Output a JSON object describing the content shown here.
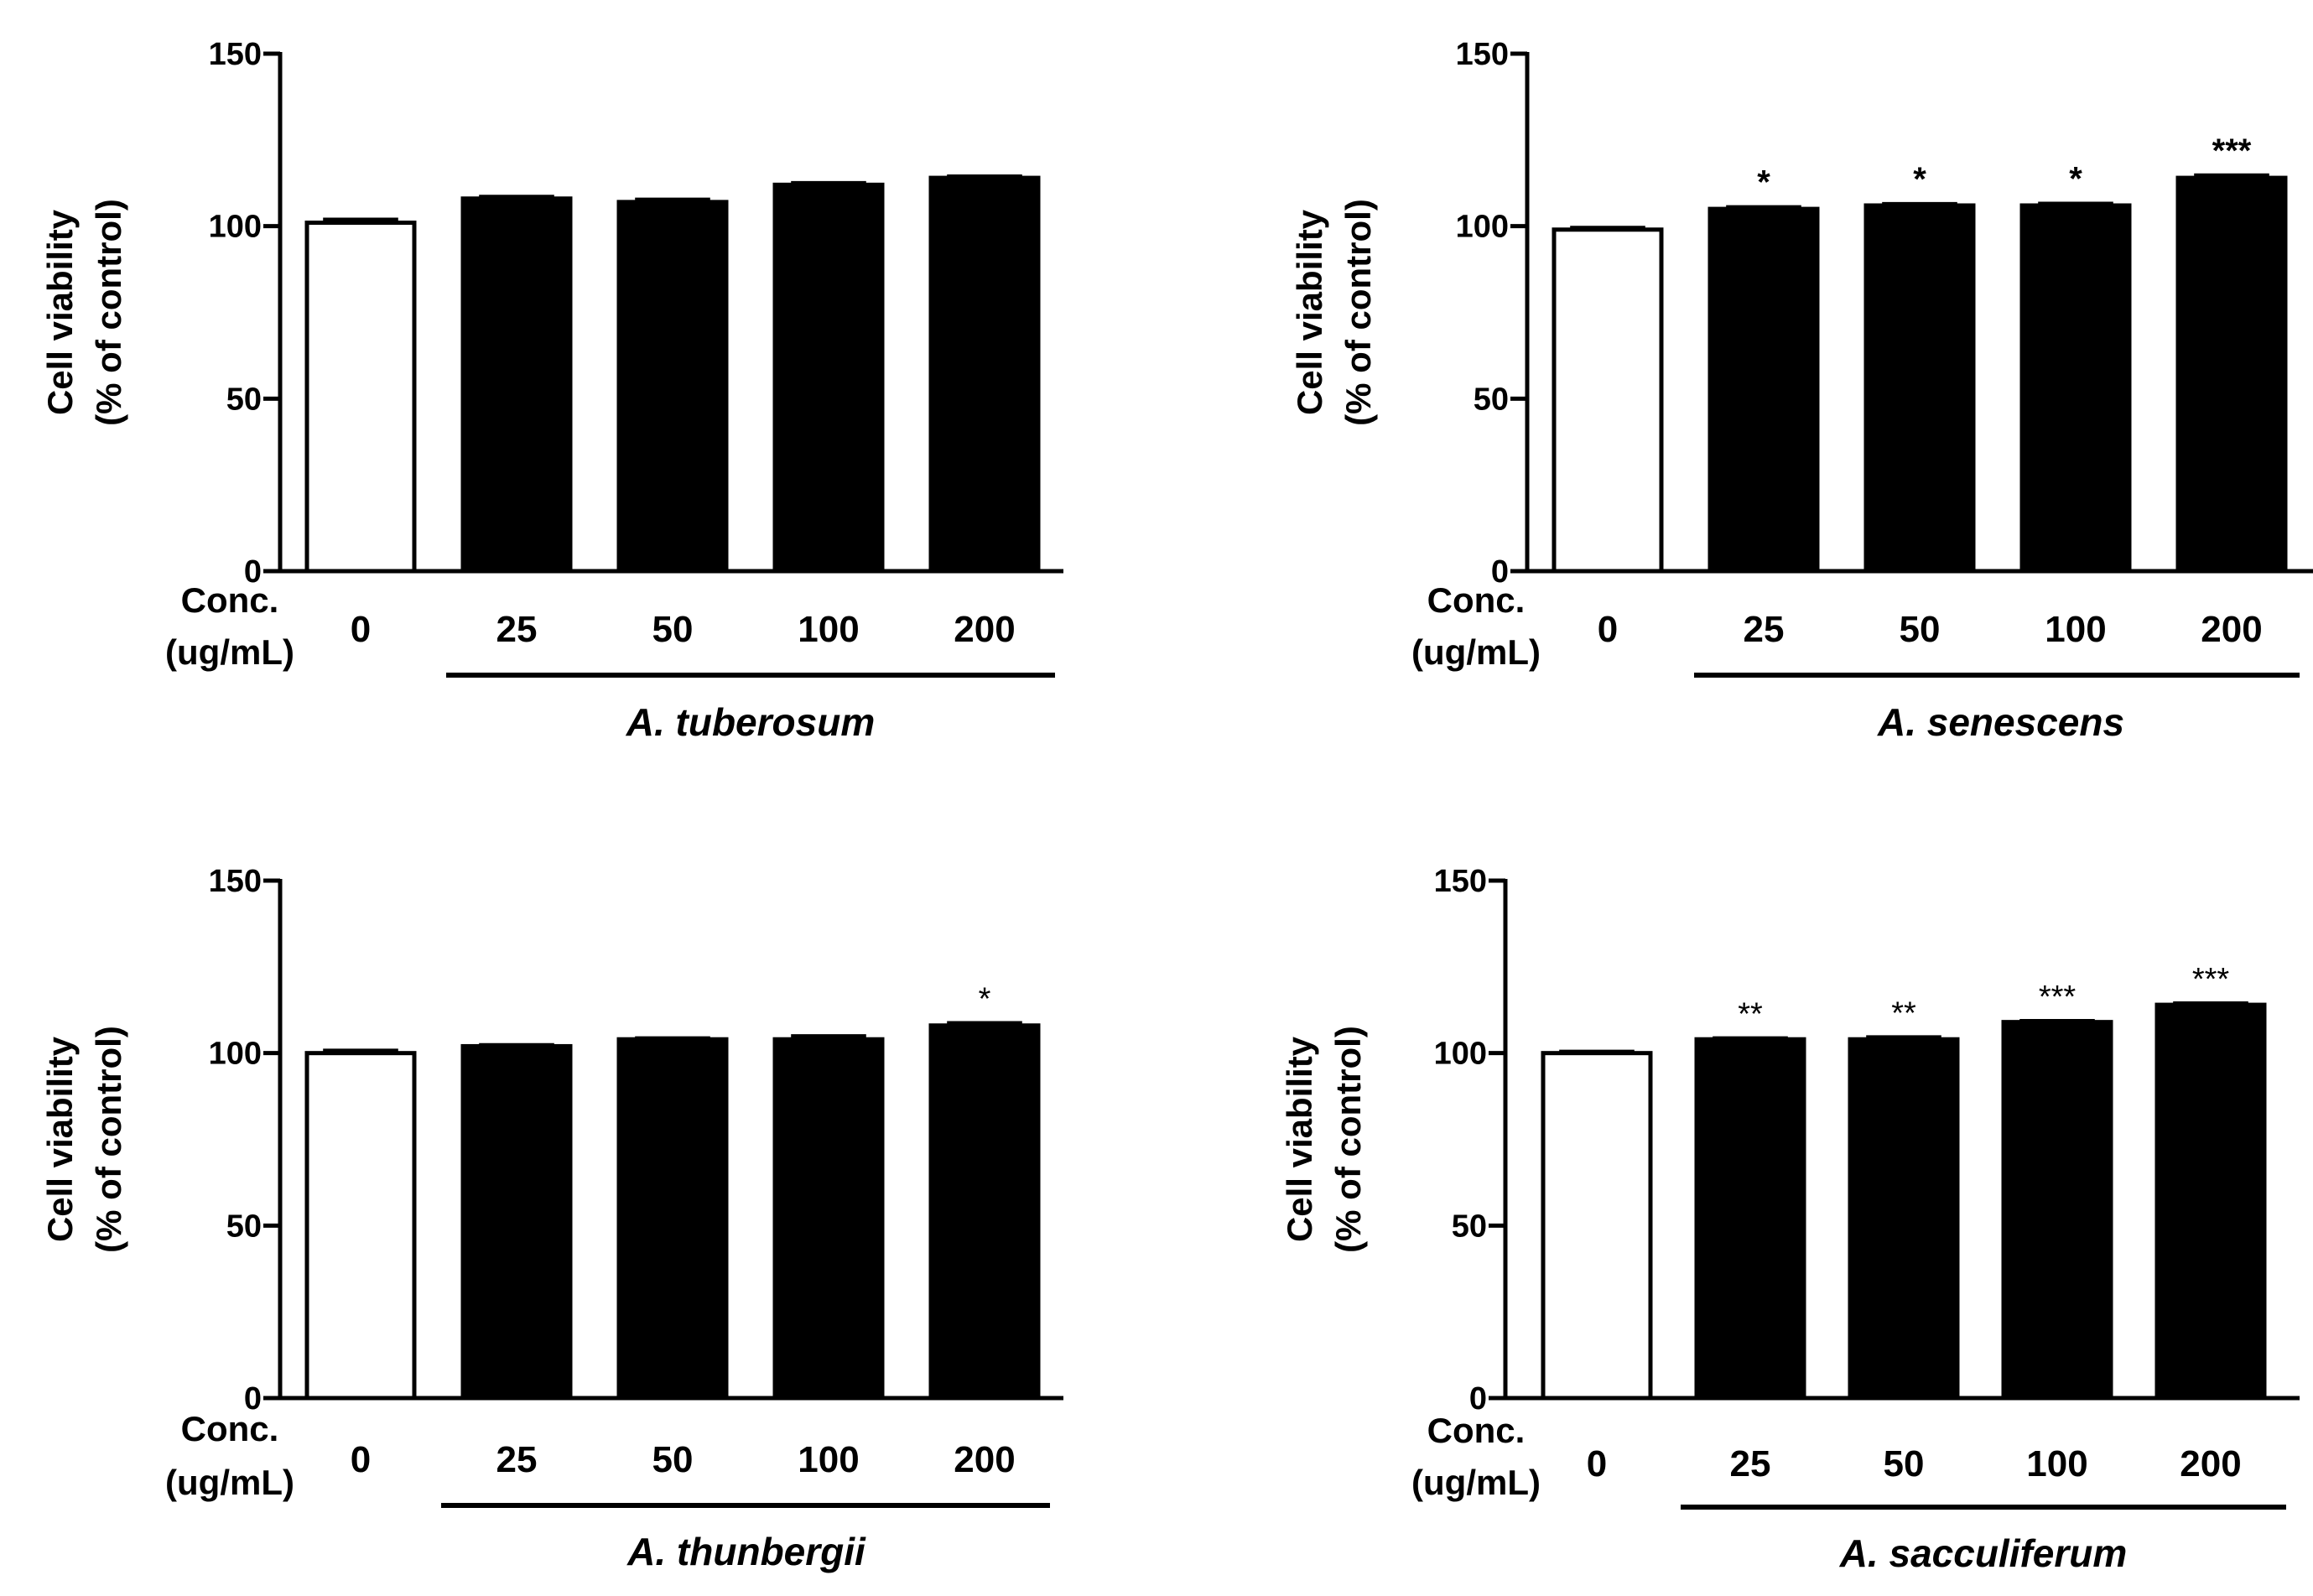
{
  "chart_data": [
    {
      "type": "bar",
      "title": "A. tuberosum",
      "ylabel": [
        "Cell viability",
        "(% of control)"
      ],
      "xlabel": [
        "Conc.",
        "(ug/mL)"
      ],
      "categories": [
        "0",
        "25",
        "50",
        "100",
        "200"
      ],
      "values": [
        101,
        108,
        107,
        112,
        114
      ],
      "errors": [
        1,
        0.6,
        0.8,
        0.6,
        0.5
      ],
      "fill": [
        "white",
        "black",
        "black",
        "black",
        "black"
      ],
      "significance": [
        "",
        "",
        "",
        "",
        ""
      ],
      "ylim": [
        0,
        150
      ],
      "yticks": [
        "0",
        "50",
        "100",
        "150"
      ],
      "group_label": "A. tuberosum"
    },
    {
      "type": "bar",
      "title": "A. senescens",
      "ylabel": [
        "Cell viability",
        "(% of control)"
      ],
      "xlabel": [
        "Conc.",
        "(ug/mL)"
      ],
      "categories": [
        "0",
        "25",
        "50",
        "100",
        "200"
      ],
      "values": [
        99,
        105,
        106,
        106,
        114
      ],
      "errors": [
        0.6,
        0.6,
        0.5,
        0.6,
        0.8
      ],
      "fill": [
        "white",
        "black",
        "black",
        "black",
        "black"
      ],
      "significance": [
        "",
        "*",
        "*",
        "*",
        "***"
      ],
      "ylim": [
        0,
        150
      ],
      "yticks": [
        "0",
        "50",
        "100",
        "150"
      ],
      "group_label": "A. senescens"
    },
    {
      "type": "bar",
      "title": "A. thunbergii",
      "ylabel": [
        "Cell viability",
        "(% of control)"
      ],
      "xlabel": [
        "Conc.",
        "(ug/mL)"
      ],
      "categories": [
        "0",
        "25",
        "50",
        "100",
        "200"
      ],
      "values": [
        100,
        102,
        104,
        104,
        108
      ],
      "errors": [
        0.8,
        0.4,
        0.4,
        1,
        0.8
      ],
      "fill": [
        "white",
        "black",
        "black",
        "black",
        "black"
      ],
      "significance": [
        "",
        "",
        "",
        "",
        "*"
      ],
      "ylim": [
        0,
        150
      ],
      "yticks": [
        "0",
        "50",
        "100",
        "150"
      ],
      "group_label": "A. thunbergii"
    },
    {
      "type": "bar",
      "title": "A. sacculiferum",
      "ylabel": [
        "Cell viability",
        "(% of control)"
      ],
      "xlabel": [
        "Conc.",
        "(ug/mL)"
      ],
      "categories": [
        "0",
        "25",
        "50",
        "100",
        "200"
      ],
      "values": [
        100,
        104,
        104,
        109,
        114
      ],
      "errors": [
        0.5,
        0.4,
        0.7,
        0.4,
        0.5
      ],
      "fill": [
        "white",
        "black",
        "black",
        "black",
        "black"
      ],
      "significance": [
        "",
        "**",
        "**",
        "***",
        "***"
      ],
      "ylim": [
        0,
        150
      ],
      "yticks": [
        "0",
        "50",
        "100",
        "150"
      ],
      "group_label": "A. sacculiferum"
    }
  ],
  "colors": {
    "bar_treated": "#000000",
    "bar_control": "#ffffff",
    "axis": "#000000"
  }
}
